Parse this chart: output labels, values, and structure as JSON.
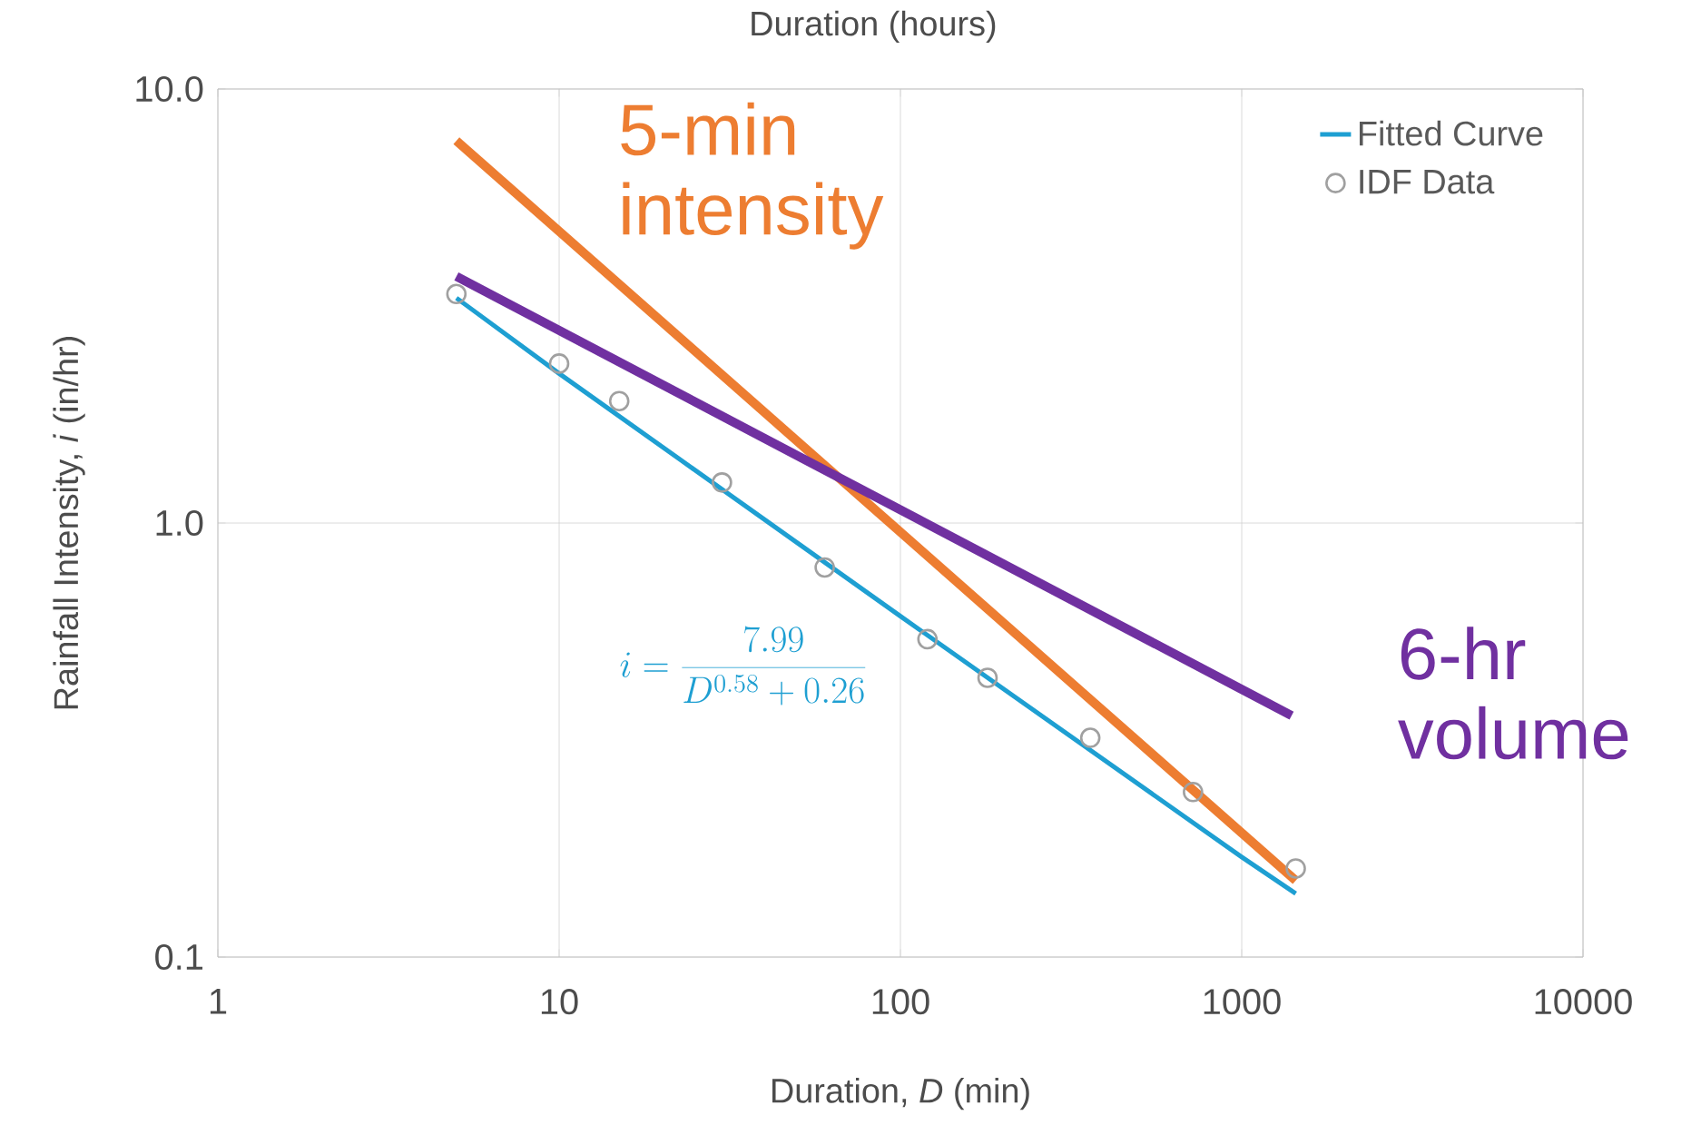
{
  "chart_data": {
    "type": "line",
    "x2label": "Duration (hours)",
    "xlabel": "Duration, *D* (min)",
    "ylabel": "Rainfall Intensity, *i* (in/hr)",
    "log": "xy",
    "grid": true,
    "legend": "top right",
    "xlim": [
      1,
      10000
    ],
    "xticks": [
      1,
      10,
      100,
      1000,
      10000
    ],
    "ylim": [
      0.1,
      10
    ],
    "yticks": [
      {
        "value": 0.1,
        "label": "0.1"
      },
      {
        "value": 1,
        "label": "1.0"
      },
      {
        "value": 10,
        "label": "10.0"
      }
    ],
    "annotations": [
      "i = \\frac{7.99}{D^{0.58} + 0.26}"
    ],
    "series": [
      {
        "name": "Fitted Curve",
        "color": "#1e9fd2",
        "marker": "none",
        "x": [
          5,
          10,
          100,
          1000,
          1440
        ],
        "values": [
          3.3,
          2.21,
          0.61,
          0.17,
          0.14
        ]
      },
      {
        "name": "IDF Data",
        "type": "scatter",
        "color": "#a0a0a0",
        "marker": "circle",
        "x": [
          5,
          10,
          15,
          30,
          60,
          120,
          180,
          360,
          720,
          1440
        ],
        "values": [
          3.37,
          2.33,
          1.91,
          1.24,
          0.79,
          0.54,
          0.44,
          0.32,
          0.24,
          0.16
        ]
      },
      {
        "name": "5-min intensity",
        "color": "#ed7d31",
        "marker": "none",
        "x": [
          5,
          1440
        ],
        "values": [
          7.6,
          0.15
        ]
      },
      {
        "name": "6-hr volume",
        "color": "#7030a0",
        "marker": "none",
        "x": [
          5,
          1400
        ],
        "values": [
          3.7,
          0.36
        ]
      }
    ]
  }
}
